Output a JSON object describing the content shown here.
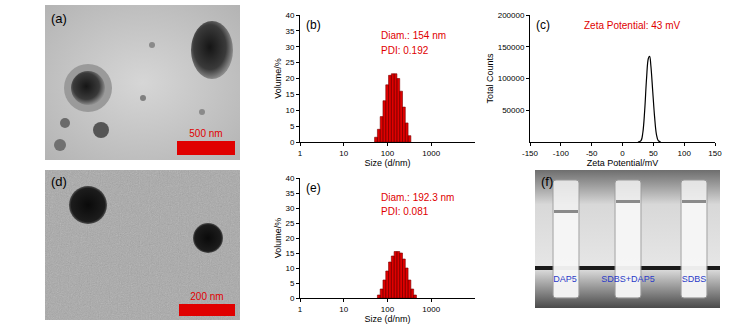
{
  "chart_data": [
    {
      "type": "histogram",
      "title": "(b)",
      "x_label": "Size (d/nm)",
      "y_label": "Volume/%",
      "bins": [
        50.7,
        58.8,
        68.1,
        78.8,
        91.3,
        105.7,
        122.4,
        141.8,
        164.2,
        190.1,
        220.2,
        255.0,
        295.3,
        342.0
      ],
      "values": [
        1.5,
        4,
        8,
        13,
        18,
        21,
        21.5,
        21.5,
        20,
        16,
        11,
        6,
        2
      ],
      "color": "#e00000",
      "log": "x",
      "xlim": [
        1,
        10000
      ],
      "xticks": [
        1,
        10,
        100,
        1000
      ],
      "ylim": [
        0,
        40
      ],
      "yticks": [
        0,
        5,
        10,
        15,
        20,
        25,
        30,
        35,
        40
      ],
      "annotations": [
        "Diam.: 154 nm",
        "PDI: 0.192"
      ]
    },
    {
      "type": "line",
      "title": "(c)",
      "x_label": "Zeta Potential/mV",
      "y_label": "Total Counts",
      "x": [
        25,
        30,
        33,
        36,
        39,
        42,
        44,
        46,
        49,
        52,
        55,
        58,
        62
      ],
      "values": [
        0,
        2000,
        15000,
        50000,
        100000,
        132000,
        135000,
        120000,
        80000,
        40000,
        12000,
        2000,
        0
      ],
      "color": "#000000",
      "xlim": [
        -150,
        150
      ],
      "xticks": [
        -150,
        -100,
        -50,
        0,
        50,
        100,
        150
      ],
      "ylim": [
        0,
        200000
      ],
      "yticks": [
        50000,
        100000,
        150000,
        200000
      ],
      "annotations": [
        "Zeta Potential: 43 mV"
      ]
    },
    {
      "type": "histogram",
      "title": "(e)",
      "x_label": "Size (d/nm)",
      "y_label": "Volume/%",
      "bins": [
        58.8,
        68.1,
        78.8,
        91.3,
        105.7,
        122.4,
        141.8,
        164.2,
        190.1,
        220.2,
        255.0,
        295.3,
        342.0,
        396.0,
        458.6
      ],
      "values": [
        1,
        3,
        6,
        9,
        12,
        14,
        15.5,
        15.5,
        15,
        13,
        10,
        6,
        3,
        1
      ],
      "color": "#e00000",
      "log": "x",
      "xlim": [
        1,
        10000
      ],
      "xticks": [
        1,
        10,
        100,
        1000
      ],
      "ylim": [
        0,
        40
      ],
      "yticks": [
        0,
        5,
        10,
        15,
        20,
        25,
        30,
        35,
        40
      ],
      "annotations": [
        "Diam.: 192.3 nm",
        "PDI: 0.081"
      ]
    }
  ],
  "images": [
    {
      "label": "(a)",
      "scale_bar": "500 nm"
    },
    {
      "label": "(d)",
      "scale_bar": "200 nm"
    },
    {
      "label": "(f)",
      "vials": [
        "DAP5",
        "SDBS+DAP5",
        "SDBS"
      ]
    }
  ]
}
